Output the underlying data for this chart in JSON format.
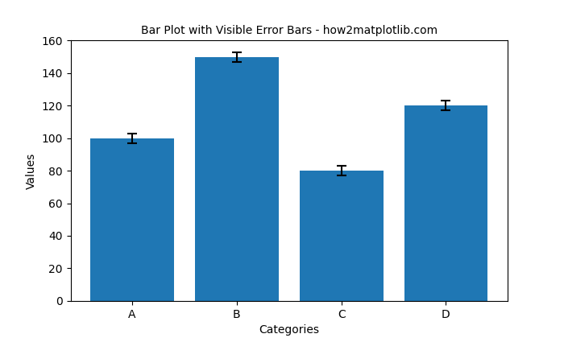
{
  "categories": [
    "A",
    "B",
    "C",
    "D"
  ],
  "values": [
    100,
    150,
    80,
    120
  ],
  "errors": [
    3,
    3,
    3,
    3
  ],
  "bar_color": "#1f77b4",
  "title": "Bar Plot with Visible Error Bars - how2matplotlib.com",
  "xlabel": "Categories",
  "ylabel": "Values",
  "ylim": [
    0,
    160
  ],
  "yticks": [
    0,
    20,
    40,
    60,
    80,
    100,
    120,
    140,
    160
  ],
  "title_fontsize": 10,
  "label_fontsize": 10,
  "figsize": [
    7.0,
    4.2
  ],
  "dpi": 100,
  "error_kw": {
    "ecolor": "black",
    "capsize": 4,
    "elinewidth": 1.5,
    "capthick": 1.5
  }
}
